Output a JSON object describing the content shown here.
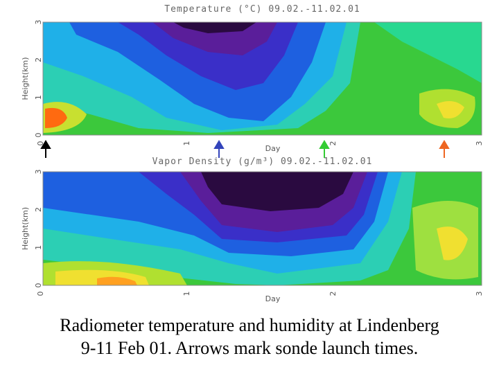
{
  "panels": [
    {
      "title": "Temperature (°C) 09.02.-11.02.01",
      "ylabel": "Height(km)",
      "xlabel": "Day",
      "xticks": [
        "0",
        "1",
        "2",
        "3"
      ],
      "yticks": [
        "0",
        "1",
        "2",
        "3"
      ]
    },
    {
      "title": "Vapor Density (g/m³) 09.02.-11.02.01",
      "ylabel": "Height(km)",
      "xlabel": "Day",
      "xticks": [
        "0",
        "1",
        "2",
        "3"
      ],
      "yticks": [
        "0",
        "1",
        "2",
        "3"
      ]
    }
  ],
  "caption": [
    "Radiometer temperature and humidity at Lindenberg",
    "9-11 Feb 01. Arrows mark sonde launch times."
  ]
}
